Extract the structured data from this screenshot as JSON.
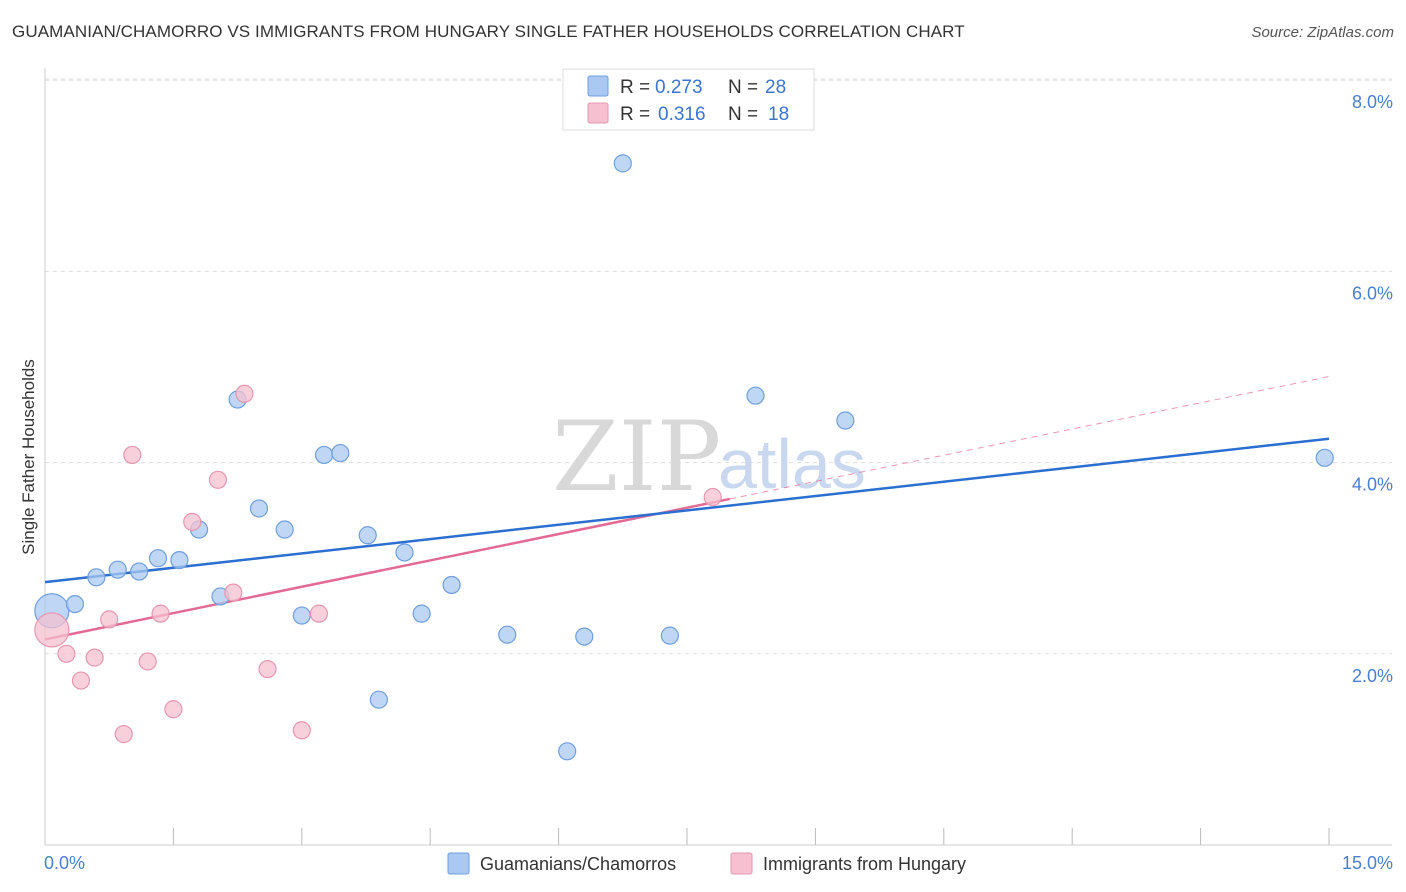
{
  "header": {
    "title": "GUAMANIAN/CHAMORRO VS IMMIGRANTS FROM HUNGARY SINGLE FATHER HOUSEHOLDS CORRELATION CHART",
    "source": "Source: ZipAtlas.com"
  },
  "watermark": {
    "zip": "ZIP",
    "atlas": "atlas"
  },
  "colors": {
    "blue_fill": "#a9c8f2",
    "blue_stroke": "#6f9fdc",
    "blue_line": "#2b6fd0",
    "pink_fill": "#f6c0d0",
    "pink_stroke": "#e597b0",
    "pink_line": "#e26b95",
    "grid": "#dddddd",
    "axis_text": "#4a7fd0"
  },
  "legend": {
    "rows": [
      {
        "r_label": "R =",
        "r_value": "0.273",
        "n_label": "N =",
        "n_value": "28"
      },
      {
        "r_label": "R =",
        "r_value": "0.316",
        "n_label": "N =",
        "n_value": "18"
      }
    ]
  },
  "chart_data": {
    "type": "scatter",
    "title": "GUAMANIAN/CHAMORRO VS IMMIGRANTS FROM HUNGARY SINGLE FATHER HOUSEHOLDS CORRELATION CHART",
    "xlabel": "",
    "ylabel": "Single Father Households",
    "xlim": [
      0,
      15
    ],
    "ylim": [
      0,
      8.2
    ],
    "x_tick_labels": [
      "0.0%",
      "15.0%"
    ],
    "y_ticks": [
      2,
      4,
      6,
      8
    ],
    "y_tick_labels": [
      "2.0%",
      "4.0%",
      "6.0%",
      "8.0%"
    ],
    "grid": true,
    "legend_position": "top-center",
    "series": [
      {
        "name": "Guamanians/Chamorros",
        "color": "#a9c8f2",
        "points": [
          {
            "x": 0.08,
            "y": 2.45,
            "big": true
          },
          {
            "x": 0.35,
            "y": 2.52
          },
          {
            "x": 0.6,
            "y": 2.8
          },
          {
            "x": 0.85,
            "y": 2.88
          },
          {
            "x": 1.1,
            "y": 2.86
          },
          {
            "x": 1.32,
            "y": 3.0
          },
          {
            "x": 1.57,
            "y": 2.98
          },
          {
            "x": 1.8,
            "y": 3.3
          },
          {
            "x": 2.05,
            "y": 2.6
          },
          {
            "x": 2.25,
            "y": 4.66
          },
          {
            "x": 2.5,
            "y": 3.52
          },
          {
            "x": 2.8,
            "y": 3.3
          },
          {
            "x": 3.0,
            "y": 2.4
          },
          {
            "x": 3.26,
            "y": 4.08
          },
          {
            "x": 3.45,
            "y": 4.1
          },
          {
            "x": 3.77,
            "y": 3.24
          },
          {
            "x": 3.9,
            "y": 1.52
          },
          {
            "x": 4.2,
            "y": 3.06
          },
          {
            "x": 4.4,
            "y": 2.42
          },
          {
            "x": 4.75,
            "y": 2.72
          },
          {
            "x": 5.4,
            "y": 2.2
          },
          {
            "x": 6.1,
            "y": 0.98
          },
          {
            "x": 6.3,
            "y": 2.18
          },
          {
            "x": 6.75,
            "y": 7.13
          },
          {
            "x": 7.3,
            "y": 2.19
          },
          {
            "x": 8.3,
            "y": 4.7
          },
          {
            "x": 9.35,
            "y": 4.44
          },
          {
            "x": 14.95,
            "y": 4.05
          }
        ],
        "trend": {
          "x0": 0,
          "y0": 2.75,
          "x1": 15,
          "y1": 4.25
        }
      },
      {
        "name": "Immigrants from Hungary",
        "color": "#f6c0d0",
        "points": [
          {
            "x": 0.08,
            "y": 2.25,
            "big": true
          },
          {
            "x": 0.25,
            "y": 2.0
          },
          {
            "x": 0.42,
            "y": 1.72
          },
          {
            "x": 0.58,
            "y": 1.96
          },
          {
            "x": 0.75,
            "y": 2.36
          },
          {
            "x": 0.92,
            "y": 1.16
          },
          {
            "x": 1.02,
            "y": 4.08
          },
          {
            "x": 1.2,
            "y": 1.92
          },
          {
            "x": 1.35,
            "y": 2.42
          },
          {
            "x": 1.5,
            "y": 1.42
          },
          {
            "x": 1.72,
            "y": 3.38
          },
          {
            "x": 2.02,
            "y": 3.82
          },
          {
            "x": 2.2,
            "y": 2.64
          },
          {
            "x": 2.33,
            "y": 4.72
          },
          {
            "x": 2.6,
            "y": 1.84
          },
          {
            "x": 3.0,
            "y": 1.2
          },
          {
            "x": 3.2,
            "y": 2.42
          },
          {
            "x": 7.8,
            "y": 3.64
          }
        ],
        "trend": {
          "x0": 0,
          "y0": 2.15,
          "x1": 8.0,
          "y1": 3.62
        },
        "trend_extension": {
          "x0": 8.0,
          "y0": 3.62,
          "x1": 15,
          "y1": 4.9
        }
      }
    ]
  },
  "bottom_legend": {
    "items": [
      "Guamanians/Chamorros",
      "Immigrants from Hungary"
    ]
  }
}
